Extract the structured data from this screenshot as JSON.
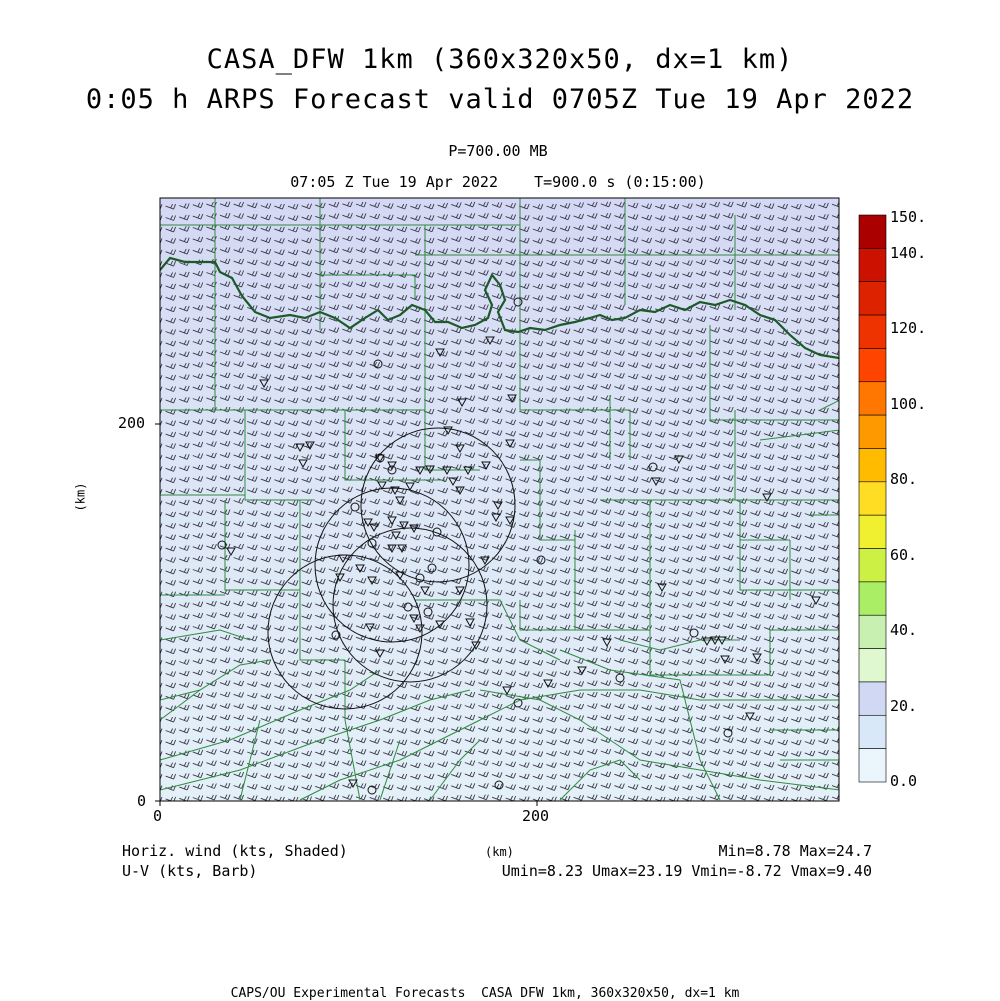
{
  "header": {
    "title_line1": "CASA_DFW 1km (360x320x50, dx=1 km)",
    "title_line2": "0:05 h ARPS Forecast valid 0705Z Tue 19 Apr 2022",
    "level": "P=700.00 MB",
    "time_line": "07:05 Z Tue 19 Apr 2022    T=900.0 s (0:15:00)"
  },
  "axes": {
    "x_ticks": [
      "0",
      "200"
    ],
    "y_ticks": [
      "0",
      "200"
    ],
    "x_unit": "(km)",
    "y_unit": "(km)"
  },
  "colorbar": {
    "labels": [
      "150.",
      "140.",
      "120.",
      "100.",
      "80.",
      "60.",
      "40.",
      "20.",
      "0.0"
    ],
    "colors": [
      "#aa0000",
      "#cc1100",
      "#dd2200",
      "#ee3300",
      "#ff4400",
      "#ff7700",
      "#ff9900",
      "#ffbb00",
      "#ffdd22",
      "#f0f030",
      "#ccf044",
      "#aaee66",
      "#c8f0b0",
      "#e0f8d0",
      "#d0d8f4",
      "#d8e8f8",
      "#eaf6fc"
    ]
  },
  "footer": {
    "left1": "Horiz. wind (kts, Shaded)",
    "left2": "U-V (kts, Barb)",
    "right1": "Min=8.78 Max=24.7",
    "right2": "Umin=8.23 Umax=23.19 Vmin=-8.72 Vmax=9.40",
    "credit": "CAPS/OU Experimental Forecasts  CASA DFW 1km, 360x320x50, dx=1 km"
  },
  "legend_colors": {
    "map_fill_top": "#d8dcf4",
    "map_fill_bottom": "#e2eef8",
    "county_lines": "#2e8b3e",
    "river": "#1c5a2a",
    "radar_rings": "#000000"
  },
  "field": {
    "dominant_wind": "westerly",
    "station_marks": [
      "triangle",
      "circle"
    ]
  }
}
